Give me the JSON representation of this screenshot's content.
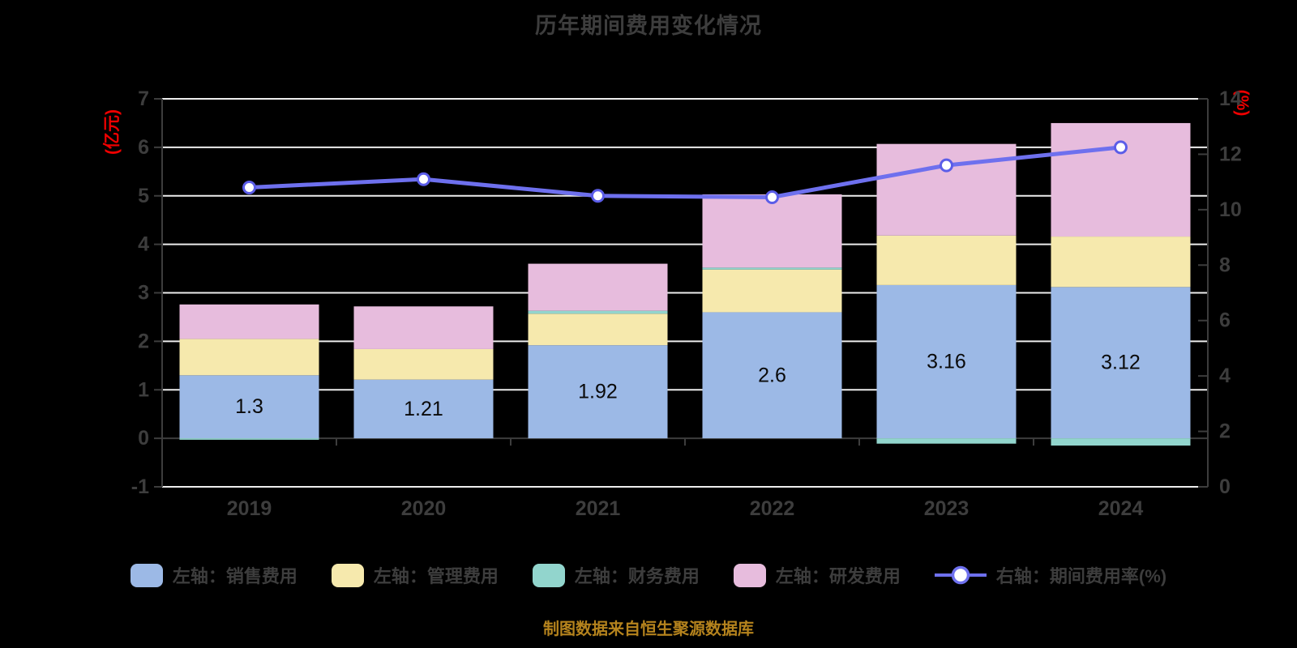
{
  "title": "历年期间费用变化情况",
  "caption": "制图数据来自恒生聚源数据库",
  "style": {
    "background": "#000000",
    "grid_color": "#ededed",
    "axis_color": "#3d3d3d",
    "text_color": "#3d3d3d",
    "axis_title_color": "#ee0000",
    "bar_label_color": "#0a0a0a",
    "caption_color": "#b5831d",
    "marker_fill": "#ffffff"
  },
  "chart_data": {
    "type": "bar",
    "subtype": "stacked-bar-with-line",
    "categories": [
      "2019",
      "2020",
      "2021",
      "2022",
      "2023",
      "2024"
    ],
    "series": [
      {
        "key": "sales",
        "legend": "左轴：销售费用",
        "type": "bar",
        "axis": "left",
        "color": "#9cb9e6",
        "values": [
          1.3,
          1.21,
          1.92,
          2.6,
          3.16,
          3.12
        ],
        "data_labels": [
          "1.3",
          "1.21",
          "1.92",
          "2.6",
          "3.16",
          "3.12"
        ]
      },
      {
        "key": "admin",
        "legend": "左轴：管理费用",
        "type": "bar",
        "axis": "left",
        "color": "#f6e9ad",
        "values": [
          0.75,
          0.63,
          0.65,
          0.88,
          1.02,
          1.04
        ]
      },
      {
        "key": "finance",
        "legend": "左轴：财务费用",
        "type": "bar",
        "axis": "left",
        "color": "#92d5cd",
        "values": [
          -0.03,
          0,
          0.06,
          0.04,
          -0.11,
          -0.15
        ]
      },
      {
        "key": "rnd",
        "legend": "左轴：研发费用",
        "type": "bar",
        "axis": "left",
        "color": "#e7bcdd",
        "values": [
          0.71,
          0.88,
          0.97,
          1.51,
          1.89,
          2.34
        ]
      },
      {
        "key": "rate",
        "legend": "右轴：期间费用率(%)",
        "type": "line",
        "axis": "right",
        "color": "#6e70ee",
        "marker_stroke": "#5b5de8",
        "values": [
          10.8,
          11.1,
          10.5,
          10.45,
          11.6,
          12.25
        ]
      }
    ],
    "left_axis": {
      "label": "(亿元)",
      "min": -1,
      "max": 7,
      "ticks": [
        7,
        6,
        5,
        4,
        3,
        2,
        1,
        0,
        -1
      ],
      "gridlines": [
        7,
        6,
        5,
        4,
        3,
        2,
        1,
        -1
      ]
    },
    "right_axis": {
      "label": "(%)",
      "min": 0,
      "max": 14,
      "ticks": [
        14,
        12,
        10,
        8,
        6,
        4,
        2,
        0
      ]
    },
    "legend_position": "bottom",
    "grid": true
  }
}
